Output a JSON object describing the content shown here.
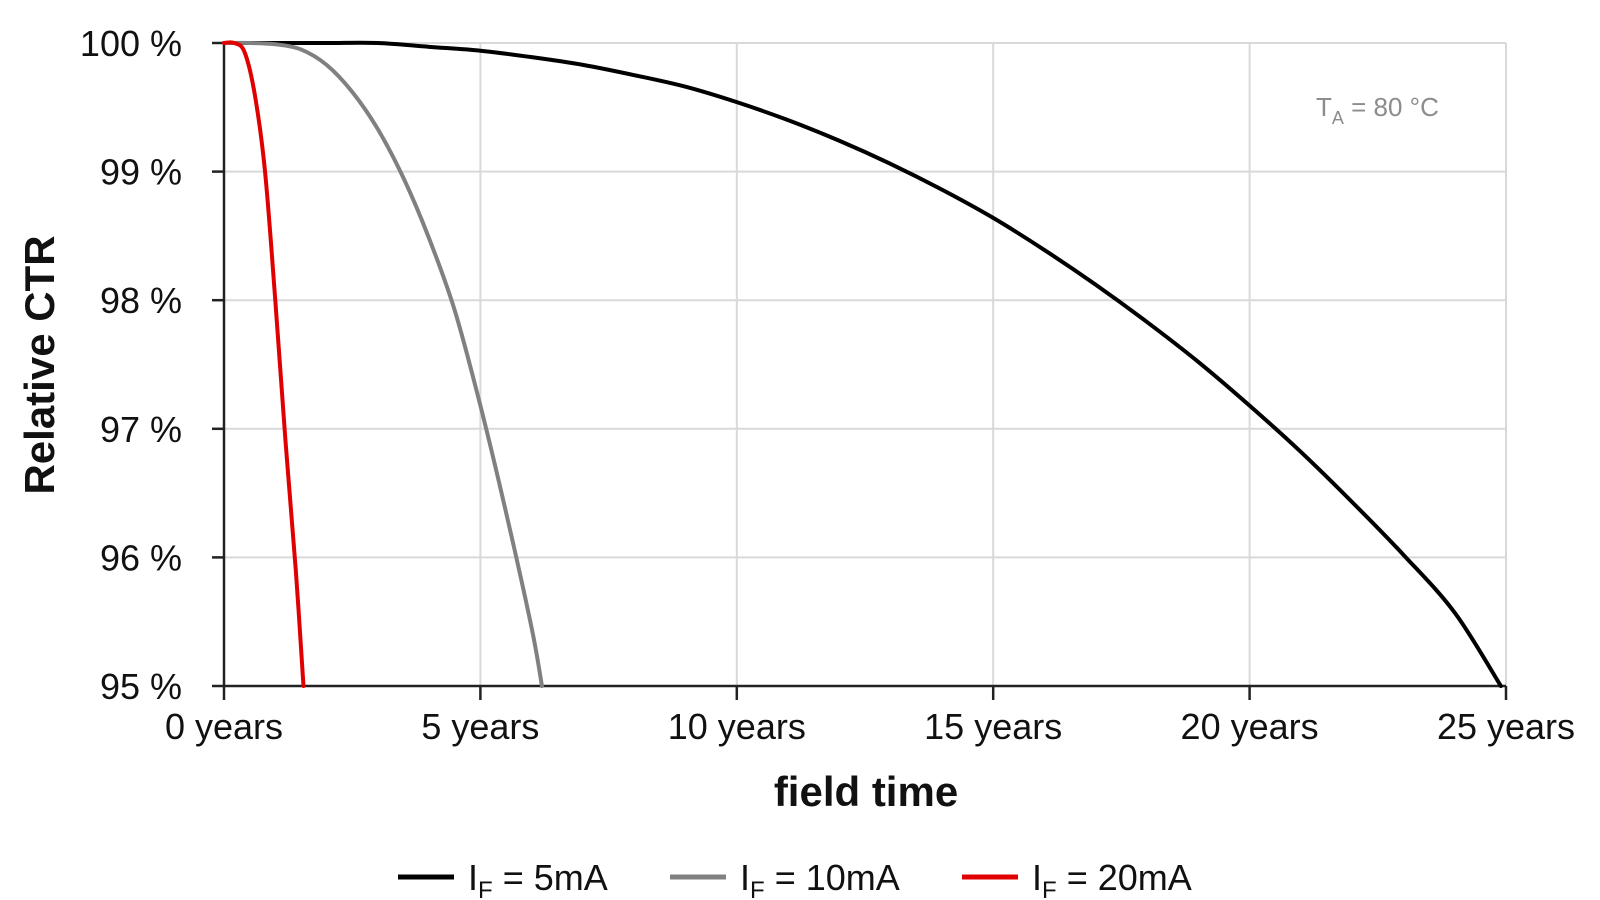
{
  "chart_data": {
    "type": "line",
    "xlabel": "field time",
    "ylabel": "Relative CTR",
    "xlim": [
      0,
      25
    ],
    "ylim": [
      95,
      100
    ],
    "x_ticks": [
      0,
      5,
      10,
      15,
      20,
      25
    ],
    "x_tick_labels": [
      "0 years",
      "5 years",
      "10 years",
      "15 years",
      "20 years",
      "25 years"
    ],
    "y_ticks": [
      95,
      96,
      97,
      98,
      99,
      100
    ],
    "y_tick_labels": [
      "95 %",
      "96 %",
      "97 %",
      "98 %",
      "99 %",
      "100 %"
    ],
    "grid": true,
    "legend_position": "bottom",
    "annotation": {
      "symbol": "T",
      "subscript": "A",
      "value": " = 80 °C"
    },
    "series": [
      {
        "name": "IF = 5mA",
        "label_main": "I",
        "label_sub": "F",
        "label_rest": " = 5mA",
        "color": "#000000",
        "x": [
          0,
          1,
          2,
          3,
          4,
          5,
          6,
          7,
          8,
          9,
          10,
          11,
          12,
          13,
          14,
          15,
          16,
          17,
          18,
          19,
          20,
          21,
          22,
          23,
          24,
          24.9
        ],
        "y": [
          100,
          100,
          100,
          100,
          99.97,
          99.94,
          99.89,
          99.83,
          99.75,
          99.66,
          99.54,
          99.4,
          99.24,
          99.06,
          98.86,
          98.64,
          98.39,
          98.12,
          97.83,
          97.52,
          97.18,
          96.82,
          96.43,
          96.02,
          95.57,
          95
        ]
      },
      {
        "name": "IF = 10mA",
        "label_main": "I",
        "label_sub": "F",
        "label_rest": " = 10mA",
        "color": "#808080",
        "x": [
          0,
          0.5,
          1,
          1.5,
          2,
          2.5,
          3,
          3.5,
          4,
          4.5,
          5,
          5.5,
          6,
          6.2
        ],
        "y": [
          100,
          100,
          99.99,
          99.95,
          99.83,
          99.62,
          99.33,
          98.95,
          98.48,
          97.92,
          97.18,
          96.35,
          95.45,
          95
        ]
      },
      {
        "name": "IF = 20mA",
        "label_main": "I",
        "label_sub": "F",
        "label_rest": " = 20mA",
        "color": "#e00000",
        "x": [
          0,
          0.2,
          0.4,
          0.6,
          0.8,
          1.0,
          1.2,
          1.4,
          1.55
        ],
        "y": [
          100,
          100,
          99.93,
          99.6,
          99.0,
          98.0,
          96.9,
          95.9,
          95
        ]
      }
    ]
  }
}
